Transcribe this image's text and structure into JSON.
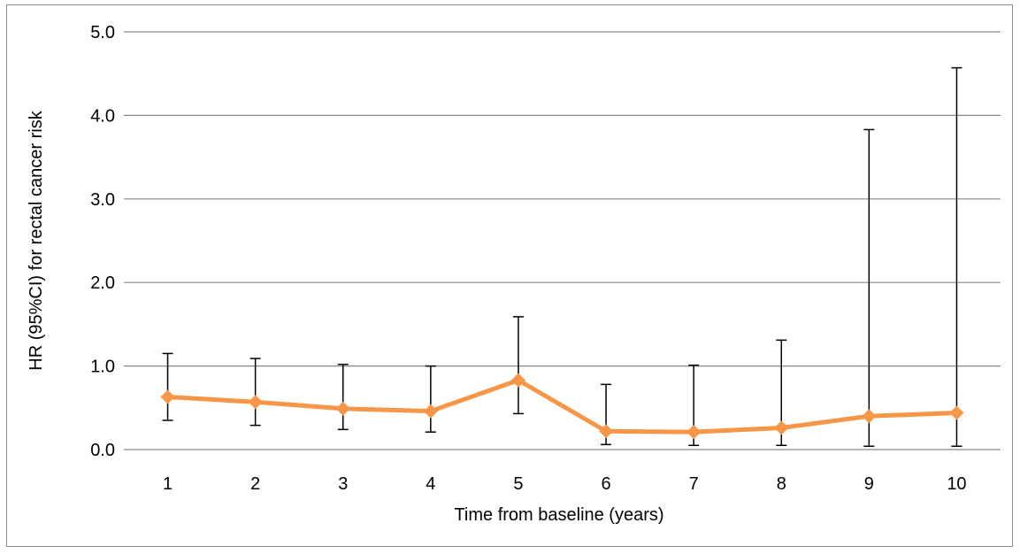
{
  "chart_data": {
    "type": "line",
    "title": "",
    "xlabel": "Time from baseline (years)",
    "ylabel": "HR (95%CI) for rectal cancer risk",
    "categories": [
      "1",
      "2",
      "3",
      "4",
      "5",
      "6",
      "7",
      "8",
      "9",
      "10"
    ],
    "series": [
      {
        "values": [
          0.63,
          0.57,
          0.49,
          0.46,
          0.83,
          0.22,
          0.21,
          0.26,
          0.4,
          0.44
        ],
        "lower": [
          0.35,
          0.29,
          0.24,
          0.21,
          0.43,
          0.06,
          0.05,
          0.05,
          0.04,
          0.04
        ],
        "upper": [
          1.15,
          1.09,
          1.02,
          1.0,
          1.59,
          0.78,
          1.01,
          1.31,
          3.83,
          4.57
        ],
        "color": "#f79646",
        "marker": "diamond"
      }
    ],
    "ylim": [
      0,
      5
    ],
    "yticks": [
      "0.0",
      "1.0",
      "2.0",
      "3.0",
      "4.0",
      "5.0"
    ],
    "grid": true,
    "legend": "none",
    "error_bar_color": "#000000",
    "gridline_color": "#868686"
  }
}
